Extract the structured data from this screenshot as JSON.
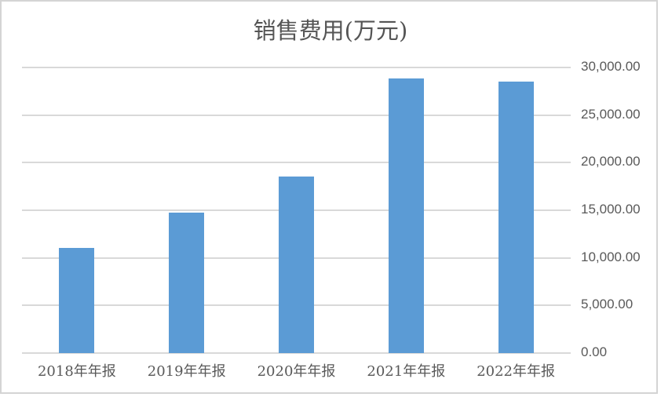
{
  "chart_data": {
    "type": "bar",
    "title": "销售费用(万元)",
    "categories": [
      "2018年年报",
      "2019年年报",
      "2020年年报",
      "2021年年报",
      "2022年年报"
    ],
    "values": [
      11050,
      14780,
      18570,
      28860,
      28530
    ],
    "y_ticks": [
      {
        "value": 0,
        "label": "0.00"
      },
      {
        "value": 5000,
        "label": "5,000.00"
      },
      {
        "value": 10000,
        "label": "10,000.00"
      },
      {
        "value": 15000,
        "label": "15,000.00"
      },
      {
        "value": 20000,
        "label": "20,000.00"
      },
      {
        "value": 25000,
        "label": "25,000.00"
      },
      {
        "value": 30000,
        "label": "30,000.00"
      }
    ],
    "ylim": [
      0,
      30000
    ],
    "xlabel": "",
    "ylabel": "",
    "y_axis_side": "right",
    "grid": "horizontal",
    "legend": "none"
  },
  "colors": {
    "bar": "#5b9bd5",
    "gridline": "#d9d9d9",
    "axis_text": "#595959",
    "title_text": "#555555",
    "frame_border": "#d4d4d4",
    "background": "#ffffff"
  }
}
